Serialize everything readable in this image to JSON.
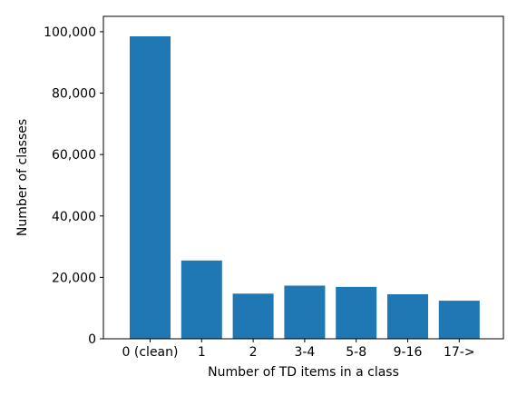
{
  "chart_data": {
    "type": "bar",
    "categories": [
      "0 (clean)",
      "1",
      "2",
      "3-4",
      "5-8",
      "9-16",
      "17->"
    ],
    "values": [
      98500,
      25500,
      14700,
      17300,
      16900,
      14500,
      12400
    ],
    "xlabel": "Number of TD items in a class",
    "ylabel": "Number of classes",
    "ylim": [
      0,
      105000
    ],
    "yticks": [
      0,
      20000,
      40000,
      60000,
      80000,
      100000
    ],
    "ytick_labels": [
      "0",
      "20,000",
      "40,000",
      "60,000",
      "80,000",
      "100,000"
    ],
    "bar_color": "#1f77b4",
    "grid": false,
    "legend": "none"
  }
}
